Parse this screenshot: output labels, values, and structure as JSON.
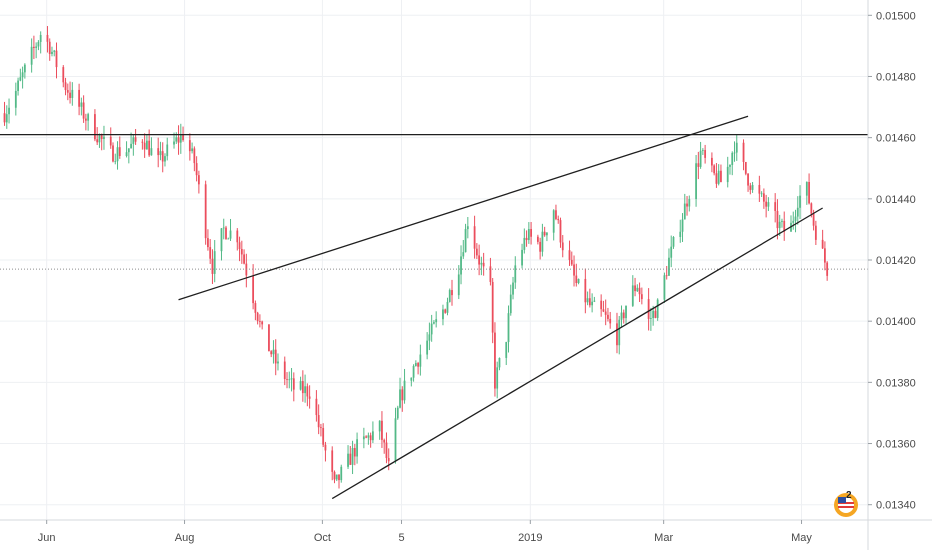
{
  "chart_data": {
    "type": "candlestick",
    "title": "",
    "ylim": [
      0.01335,
      0.01505
    ],
    "y_ticks": [
      "0.01500",
      "0.01480",
      "0.01460",
      "0.01440",
      "0.01420",
      "0.01400",
      "0.01380",
      "0.01360",
      "0.01340"
    ],
    "x_ticks": [
      "Jun",
      "Aug",
      "Oct",
      "5",
      "2019",
      "Mar",
      "May"
    ],
    "last_price": 0.01417,
    "horizontal_level": 0.01461,
    "colors": {
      "up": "#53b987",
      "down": "#eb4d5c",
      "line": "#1f1f1f",
      "grid": "#eef0f3"
    },
    "trend_lines": [
      {
        "name": "upper-trendline",
        "from": [
          "2018-08-01",
          0.01407
        ],
        "to": [
          "2019-04-10",
          0.01467
        ]
      },
      {
        "name": "lower-trendline",
        "from": [
          "2018-10-08",
          0.01342
        ],
        "to": [
          "2019-05-13",
          0.01437
        ]
      }
    ],
    "path_points": [
      [
        "2018-05-16",
        0.01468
      ],
      [
        "2018-05-21",
        0.01475
      ],
      [
        "2018-05-25",
        0.01482
      ],
      [
        "2018-06-01",
        0.01494
      ],
      [
        "2018-06-05",
        0.0149
      ],
      [
        "2018-06-11",
        0.01478
      ],
      [
        "2018-06-18",
        0.0147
      ],
      [
        "2018-06-25",
        0.01462
      ],
      [
        "2018-07-02",
        0.01455
      ],
      [
        "2018-07-09",
        0.01456
      ],
      [
        "2018-07-16",
        0.0146
      ],
      [
        "2018-07-23",
        0.01452
      ],
      [
        "2018-07-30",
        0.01458
      ],
      [
        "2018-08-03",
        0.01461
      ],
      [
        "2018-08-08",
        0.01452
      ],
      [
        "2018-08-13",
        0.0143
      ],
      [
        "2018-08-16",
        0.01418
      ],
      [
        "2018-08-21",
        0.0143
      ],
      [
        "2018-08-27",
        0.01428
      ],
      [
        "2018-09-03",
        0.01408
      ],
      [
        "2018-09-07",
        0.01396
      ],
      [
        "2018-09-14",
        0.01385
      ],
      [
        "2018-09-21",
        0.01378
      ],
      [
        "2018-09-28",
        0.01377
      ],
      [
        "2018-10-04",
        0.0136
      ],
      [
        "2018-10-09",
        0.01346
      ],
      [
        "2018-10-12",
        0.0135
      ],
      [
        "2018-10-18",
        0.01358
      ],
      [
        "2018-10-24",
        0.01362
      ],
      [
        "2018-10-29",
        0.01365
      ],
      [
        "2018-11-02",
        0.01352
      ],
      [
        "2018-11-07",
        0.01375
      ],
      [
        "2018-11-13",
        0.01385
      ],
      [
        "2018-11-20",
        0.01395
      ],
      [
        "2018-11-27",
        0.01405
      ],
      [
        "2018-12-03",
        0.01418
      ],
      [
        "2018-12-07",
        0.01433
      ],
      [
        "2018-12-12",
        0.0142
      ],
      [
        "2018-12-17",
        0.0141
      ],
      [
        "2018-12-19",
        0.0138
      ],
      [
        "2018-12-24",
        0.01395
      ],
      [
        "2018-12-28",
        0.01418
      ],
      [
        "2019-01-02",
        0.01428
      ],
      [
        "2019-01-08",
        0.01425
      ],
      [
        "2019-01-14",
        0.01437
      ],
      [
        "2019-01-18",
        0.01425
      ],
      [
        "2019-01-24",
        0.01412
      ],
      [
        "2019-01-30",
        0.01405
      ],
      [
        "2019-02-05",
        0.01402
      ],
      [
        "2019-02-11",
        0.01395
      ],
      [
        "2019-02-16",
        0.01408
      ],
      [
        "2019-02-20",
        0.01412
      ],
      [
        "2019-02-25",
        0.014
      ],
      [
        "2019-03-01",
        0.01405
      ],
      [
        "2019-03-06",
        0.0142
      ],
      [
        "2019-03-11",
        0.01432
      ],
      [
        "2019-03-16",
        0.01445
      ],
      [
        "2019-03-20",
        0.01455
      ],
      [
        "2019-03-25",
        0.01448
      ],
      [
        "2019-03-30",
        0.01445
      ],
      [
        "2019-04-04",
        0.01458
      ],
      [
        "2019-04-08",
        0.0145
      ],
      [
        "2019-04-13",
        0.01442
      ],
      [
        "2019-04-18",
        0.01438
      ],
      [
        "2019-04-23",
        0.01432
      ],
      [
        "2019-04-28",
        0.01428
      ],
      [
        "2019-05-02",
        0.0144
      ],
      [
        "2019-05-06",
        0.01443
      ],
      [
        "2019-05-09",
        0.01432
      ],
      [
        "2019-05-13",
        0.01422
      ],
      [
        "2019-05-15",
        0.01417
      ]
    ]
  },
  "badge": {
    "count": "2"
  }
}
